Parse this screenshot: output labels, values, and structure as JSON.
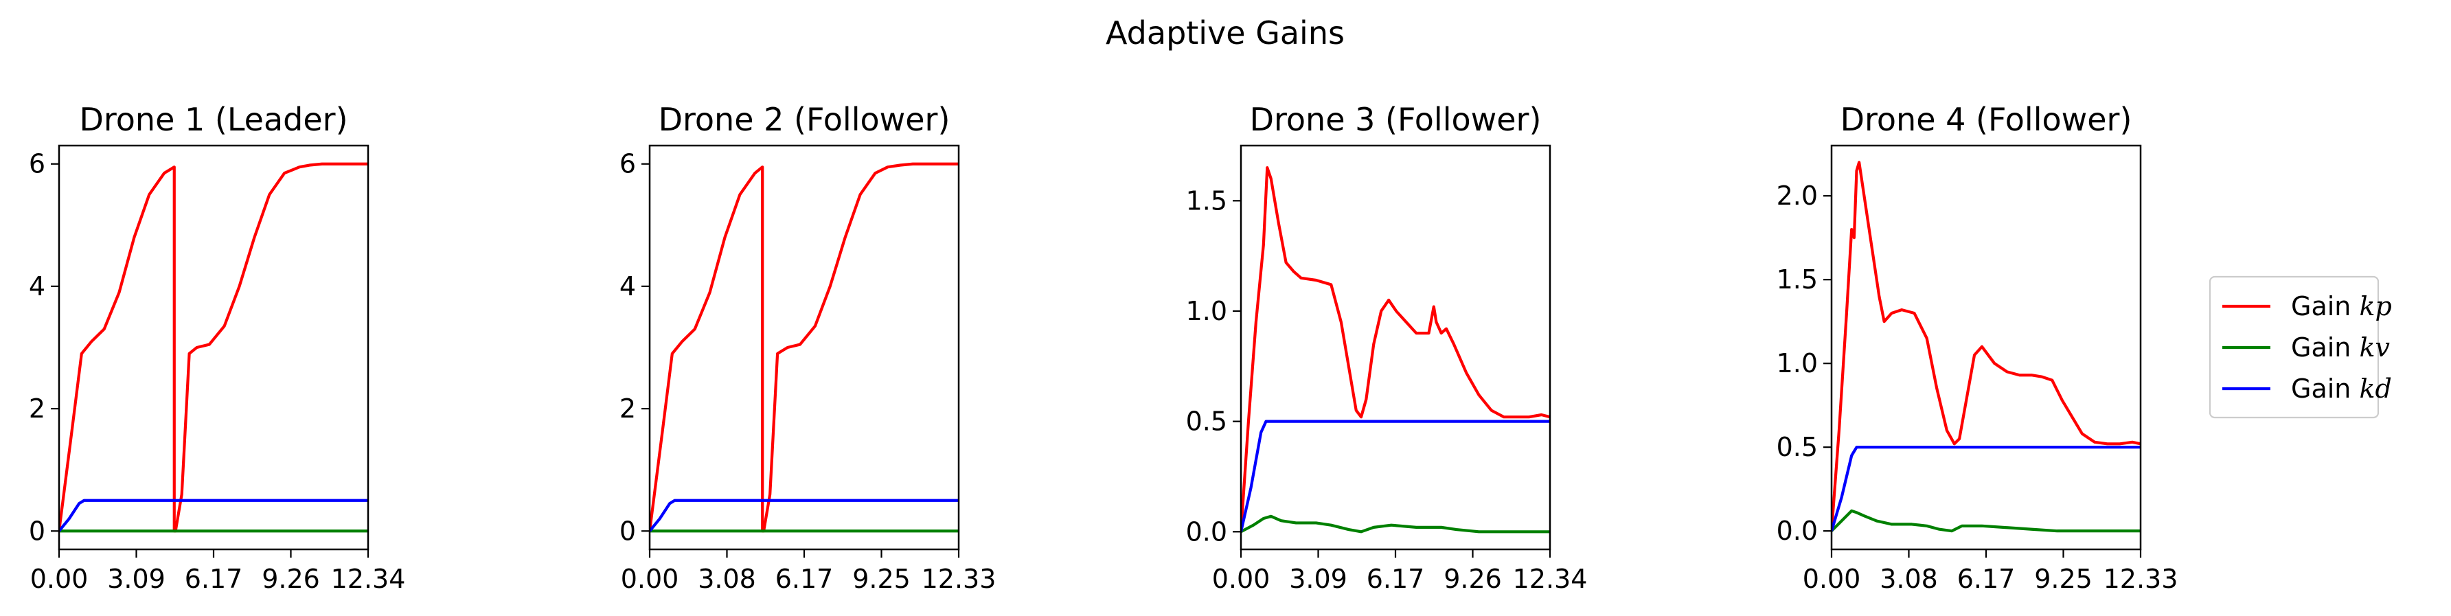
{
  "figure": {
    "suptitle": "Adaptive Gains"
  },
  "legend": {
    "placement": "right",
    "entries": [
      {
        "label_prefix": "Gain ",
        "label_var": "kp",
        "color": "#ff0000"
      },
      {
        "label_prefix": "Gain ",
        "label_var": "kv",
        "color": "#008000"
      },
      {
        "label_prefix": "Gain ",
        "label_var": "kd",
        "color": "#0000ff"
      }
    ]
  },
  "chart_data": [
    {
      "type": "line",
      "title": "Drone 1 (Leader)",
      "xlim": [
        0,
        12.34
      ],
      "ylim": [
        -0.3,
        6.3
      ],
      "xticks": [
        "0.00",
        "3.09",
        "6.17",
        "9.26",
        "12.34"
      ],
      "yticks": [
        0,
        2,
        4,
        6
      ],
      "grid": false,
      "series": [
        {
          "name": "Gain kp",
          "color": "#ff0000",
          "x": [
            0,
            0.5,
            0.9,
            1.3,
            1.8,
            2.4,
            3.0,
            3.6,
            4.2,
            4.6,
            4.6,
            4.65,
            4.9,
            5.2,
            5.5,
            6.0,
            6.6,
            7.2,
            7.8,
            8.4,
            9.0,
            9.3,
            9.6,
            10.0,
            10.5,
            11.2,
            12.34
          ],
          "y": [
            0,
            1.6,
            2.9,
            3.1,
            3.3,
            3.9,
            4.8,
            5.5,
            5.85,
            5.95,
            0.0,
            0.0,
            0.6,
            2.9,
            3.0,
            3.05,
            3.35,
            4.0,
            4.8,
            5.5,
            5.85,
            5.9,
            5.95,
            5.98,
            6.0,
            6.0,
            6.0
          ]
        },
        {
          "name": "Gain kv",
          "color": "#008000",
          "x": [
            0,
            12.34
          ],
          "y": [
            0,
            0
          ]
        },
        {
          "name": "Gain kd",
          "color": "#0000ff",
          "x": [
            0,
            0.4,
            0.8,
            1.0,
            12.34
          ],
          "y": [
            0,
            0.2,
            0.45,
            0.5,
            0.5
          ]
        }
      ]
    },
    {
      "type": "line",
      "title": "Drone 2 (Follower)",
      "xlim": [
        0,
        12.33
      ],
      "ylim": [
        -0.3,
        6.3
      ],
      "xticks": [
        "0.00",
        "3.08",
        "6.17",
        "9.25",
        "12.33"
      ],
      "yticks": [
        0,
        2,
        4,
        6
      ],
      "grid": false,
      "series": [
        {
          "name": "Gain kp",
          "color": "#ff0000",
          "x": [
            0,
            0.5,
            0.9,
            1.3,
            1.8,
            2.4,
            3.0,
            3.6,
            4.2,
            4.5,
            4.5,
            4.55,
            4.8,
            5.1,
            5.5,
            6.0,
            6.6,
            7.2,
            7.8,
            8.4,
            9.0,
            9.5,
            10.0,
            10.5,
            11.2,
            12.33
          ],
          "y": [
            0,
            1.6,
            2.9,
            3.1,
            3.3,
            3.9,
            4.8,
            5.5,
            5.85,
            5.95,
            0.0,
            0.0,
            0.6,
            2.9,
            3.0,
            3.05,
            3.35,
            4.0,
            4.8,
            5.5,
            5.85,
            5.95,
            5.98,
            6.0,
            6.0,
            6.0
          ]
        },
        {
          "name": "Gain kv",
          "color": "#008000",
          "x": [
            0,
            12.33
          ],
          "y": [
            0,
            0
          ]
        },
        {
          "name": "Gain kd",
          "color": "#0000ff",
          "x": [
            0,
            0.4,
            0.8,
            1.0,
            12.33
          ],
          "y": [
            0,
            0.2,
            0.45,
            0.5,
            0.5
          ]
        }
      ]
    },
    {
      "type": "line",
      "title": "Drone 3 (Follower)",
      "xlim": [
        0,
        12.34
      ],
      "ylim": [
        -0.08,
        1.75
      ],
      "xticks": [
        "0.00",
        "3.09",
        "6.17",
        "9.26",
        "12.34"
      ],
      "yticks": [
        0.0,
        0.5,
        1.0,
        1.5
      ],
      "grid": false,
      "series": [
        {
          "name": "Gain kp",
          "color": "#ff0000",
          "x": [
            0,
            0.3,
            0.6,
            0.9,
            1.05,
            1.2,
            1.5,
            1.8,
            2.1,
            2.4,
            3.0,
            3.6,
            4.0,
            4.3,
            4.6,
            4.8,
            5.0,
            5.3,
            5.6,
            5.9,
            6.2,
            6.6,
            7.0,
            7.5,
            7.7,
            7.8,
            8.0,
            8.2,
            8.5,
            9.0,
            9.5,
            10.0,
            10.5,
            11.0,
            11.5,
            12.0,
            12.34
          ],
          "y": [
            0,
            0.5,
            0.95,
            1.3,
            1.65,
            1.6,
            1.4,
            1.22,
            1.18,
            1.15,
            1.14,
            1.12,
            0.95,
            0.75,
            0.55,
            0.52,
            0.6,
            0.85,
            1.0,
            1.05,
            1.0,
            0.95,
            0.9,
            0.9,
            1.02,
            0.95,
            0.9,
            0.92,
            0.85,
            0.72,
            0.62,
            0.55,
            0.52,
            0.52,
            0.52,
            0.53,
            0.52
          ]
        },
        {
          "name": "Gain kv",
          "color": "#008000",
          "x": [
            0,
            0.5,
            0.9,
            1.2,
            1.6,
            2.2,
            3.0,
            3.6,
            4.3,
            4.8,
            5.3,
            6.0,
            7.0,
            8.0,
            8.6,
            9.5,
            10.5,
            12.34
          ],
          "y": [
            0,
            0.03,
            0.06,
            0.07,
            0.05,
            0.04,
            0.04,
            0.03,
            0.01,
            0.0,
            0.02,
            0.03,
            0.02,
            0.02,
            0.01,
            0.0,
            0.0,
            0.0
          ]
        },
        {
          "name": "Gain kd",
          "color": "#0000ff",
          "x": [
            0,
            0.4,
            0.8,
            1.0,
            12.34
          ],
          "y": [
            0,
            0.2,
            0.45,
            0.5,
            0.5
          ]
        }
      ]
    },
    {
      "type": "line",
      "title": "Drone 4 (Follower)",
      "xlim": [
        0,
        12.33
      ],
      "ylim": [
        -0.11,
        2.3
      ],
      "xticks": [
        "0.00",
        "3.08",
        "6.17",
        "9.25",
        "12.33"
      ],
      "yticks": [
        0.0,
        0.5,
        1.0,
        1.5,
        2.0
      ],
      "grid": false,
      "series": [
        {
          "name": "Gain kp",
          "color": "#ff0000",
          "x": [
            0,
            0.3,
            0.6,
            0.8,
            0.9,
            1.0,
            1.1,
            1.3,
            1.6,
            1.9,
            2.1,
            2.4,
            2.8,
            3.3,
            3.8,
            4.2,
            4.6,
            4.9,
            5.1,
            5.4,
            5.7,
            6.0,
            6.5,
            7.0,
            7.5,
            8.0,
            8.4,
            8.8,
            9.2,
            9.6,
            10.0,
            10.5,
            11.0,
            11.5,
            12.0,
            12.33
          ],
          "y": [
            0,
            0.6,
            1.3,
            1.8,
            1.75,
            2.15,
            2.2,
            2.0,
            1.7,
            1.4,
            1.25,
            1.3,
            1.32,
            1.3,
            1.15,
            0.85,
            0.6,
            0.52,
            0.55,
            0.8,
            1.05,
            1.1,
            1.0,
            0.95,
            0.93,
            0.93,
            0.92,
            0.9,
            0.78,
            0.68,
            0.58,
            0.53,
            0.52,
            0.52,
            0.53,
            0.52
          ]
        },
        {
          "name": "Gain kv",
          "color": "#008000",
          "x": [
            0,
            0.4,
            0.8,
            1.0,
            1.3,
            1.8,
            2.4,
            3.2,
            3.8,
            4.3,
            4.8,
            5.2,
            6.0,
            7.0,
            8.0,
            9.0,
            10.0,
            12.33
          ],
          "y": [
            0,
            0.06,
            0.12,
            0.11,
            0.09,
            0.06,
            0.04,
            0.04,
            0.03,
            0.01,
            0.0,
            0.03,
            0.03,
            0.02,
            0.01,
            0.0,
            0.0,
            0.0
          ]
        },
        {
          "name": "Gain kd",
          "color": "#0000ff",
          "x": [
            0,
            0.4,
            0.8,
            1.0,
            12.33
          ],
          "y": [
            0,
            0.2,
            0.45,
            0.5,
            0.5
          ]
        }
      ]
    }
  ]
}
